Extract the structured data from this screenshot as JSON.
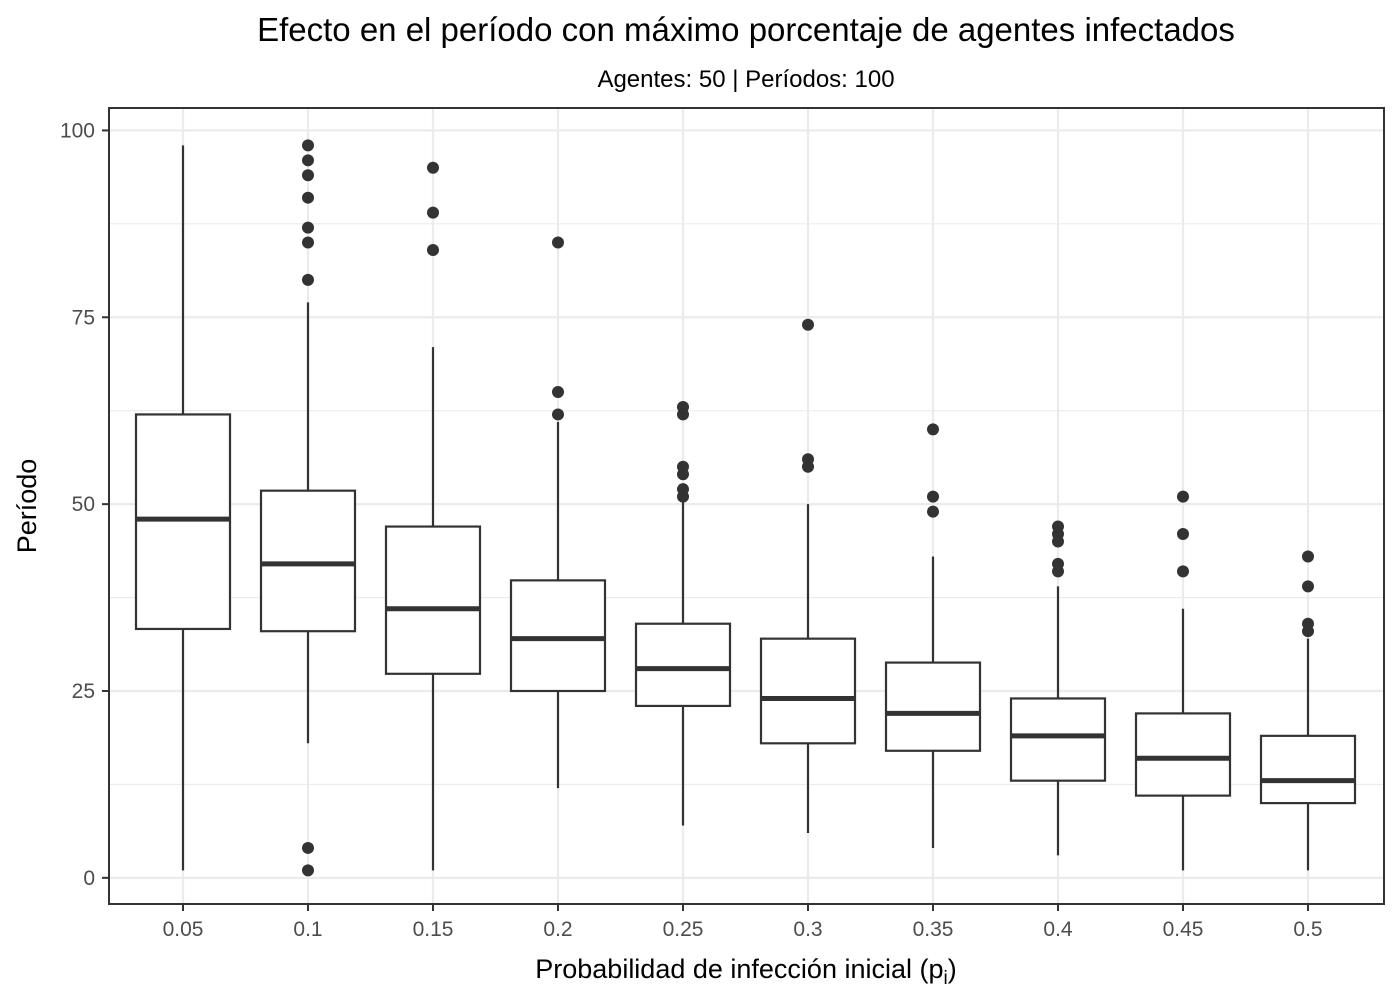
{
  "chart_data": {
    "type": "boxplot",
    "title": "Efecto en el período con máximo porcentaje de agentes infectados",
    "subtitle": "Agentes: 50 | Períodos: 100",
    "xlabel_main": "Probabilidad de infección inicial  (p",
    "xlabel_sub": "i",
    "xlabel_close": ")",
    "ylabel": "Período",
    "ylim": [
      -3.5,
      103
    ],
    "yticks": [
      0,
      25,
      50,
      75,
      100
    ],
    "yticks_labels": [
      "0",
      "25",
      "50",
      "75",
      "100"
    ],
    "grid": true,
    "categories": [
      "0.05",
      "0.1",
      "0.15",
      "0.2",
      "0.25",
      "0.3",
      "0.35",
      "0.4",
      "0.45",
      "0.5"
    ],
    "boxes": [
      {
        "lower_whisker": 1,
        "q1": 33.3,
        "median": 48,
        "q3": 62,
        "upper_whisker": 98,
        "outliers": []
      },
      {
        "lower_whisker": 18,
        "q1": 33,
        "median": 42,
        "q3": 51.8,
        "upper_whisker": 77,
        "outliers": [
          80,
          85,
          87,
          91,
          94,
          96,
          98,
          4,
          1
        ]
      },
      {
        "lower_whisker": 1,
        "q1": 27.3,
        "median": 36,
        "q3": 47,
        "upper_whisker": 71,
        "outliers": [
          84,
          89,
          95
        ]
      },
      {
        "lower_whisker": 12,
        "q1": 25,
        "median": 32,
        "q3": 39.8,
        "upper_whisker": 61,
        "outliers": [
          62,
          65,
          85
        ]
      },
      {
        "lower_whisker": 7,
        "q1": 23,
        "median": 28,
        "q3": 34,
        "upper_whisker": 51,
        "outliers": [
          51,
          52,
          54,
          55,
          62,
          63
        ]
      },
      {
        "lower_whisker": 6,
        "q1": 18,
        "median": 24,
        "q3": 32,
        "upper_whisker": 50,
        "outliers": [
          55,
          56,
          74
        ]
      },
      {
        "lower_whisker": 4,
        "q1": 17,
        "median": 22,
        "q3": 28.8,
        "upper_whisker": 43,
        "outliers": [
          49,
          51,
          60
        ]
      },
      {
        "lower_whisker": 3,
        "q1": 13,
        "median": 19,
        "q3": 24,
        "upper_whisker": 39,
        "outliers": [
          41,
          42,
          45,
          46,
          47
        ]
      },
      {
        "lower_whisker": 1,
        "q1": 11,
        "median": 16,
        "q3": 22,
        "upper_whisker": 36,
        "outliers": [
          41,
          46,
          51
        ]
      },
      {
        "lower_whisker": 1,
        "q1": 10,
        "median": 13,
        "q3": 19,
        "upper_whisker": 32,
        "outliers": [
          33,
          34,
          39,
          43
        ]
      }
    ],
    "colors": {
      "box_line": "#333333",
      "box_fill": "#ffffff",
      "grid": "#ebebeb",
      "tick_text": "#4d4d4d",
      "text": "#000000"
    }
  }
}
